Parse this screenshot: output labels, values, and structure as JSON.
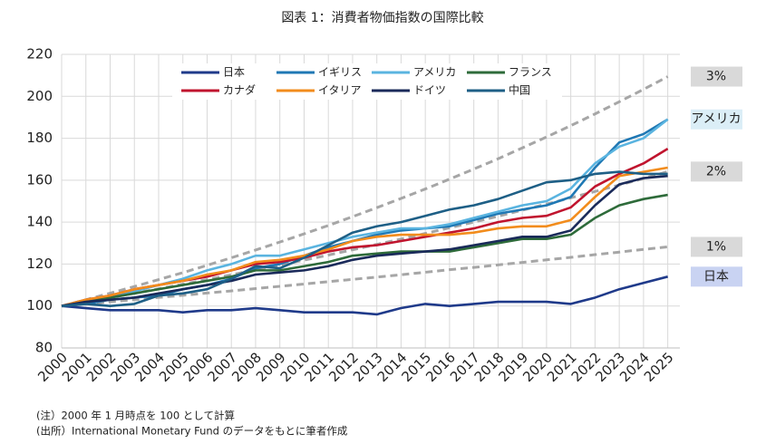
{
  "chart_data": {
    "type": "line",
    "title": "図表 1：消費者物価指数の国際比較",
    "x": [
      2000,
      2001,
      2002,
      2003,
      2004,
      2005,
      2006,
      2007,
      2008,
      2009,
      2010,
      2011,
      2012,
      2013,
      2014,
      2015,
      2016,
      2017,
      2018,
      2019,
      2020,
      2021,
      2022,
      2023,
      2024,
      2025
    ],
    "xlim": [
      2000,
      2025.5
    ],
    "xticks": [
      2000,
      2001,
      2002,
      2003,
      2004,
      2005,
      2006,
      2007,
      2008,
      2009,
      2010,
      2011,
      2012,
      2013,
      2014,
      2015,
      2016,
      2017,
      2018,
      2019,
      2020,
      2021,
      2022,
      2023,
      2024,
      2025
    ],
    "ylim": [
      80,
      220
    ],
    "yticks": [
      80,
      100,
      120,
      140,
      160,
      180,
      200,
      220
    ],
    "grid": true,
    "legend": "top",
    "series": [
      {
        "name": "日本",
        "color": "#1f3a8a",
        "end_label": "日本",
        "label_color": "#c9d3f2",
        "values": [
          100,
          99,
          98,
          98,
          98,
          97,
          98,
          98,
          99,
          98,
          97,
          97,
          97,
          96,
          99,
          101,
          100,
          101,
          102,
          102,
          102,
          101,
          104,
          108,
          111,
          114
        ]
      },
      {
        "name": "イギリス",
        "color": "#1f78b4",
        "values": [
          100,
          101,
          103,
          104,
          105,
          108,
          110,
          113,
          118,
          120,
          124,
          128,
          131,
          134,
          136,
          137,
          138,
          141,
          144,
          146,
          148,
          152,
          166,
          178,
          182,
          189
        ]
      },
      {
        "name": "アメリカ",
        "color": "#5ab4e0",
        "end_label": "アメリカ",
        "label_color": "#dbeef7",
        "values": [
          100,
          103,
          104,
          107,
          110,
          113,
          117,
          120,
          124,
          124,
          127,
          130,
          133,
          135,
          137,
          137,
          139,
          142,
          145,
          148,
          150,
          156,
          168,
          176,
          180,
          189
        ]
      },
      {
        "name": "フランス",
        "color": "#2e6b3a",
        "values": [
          100,
          102,
          104,
          106,
          108,
          110,
          112,
          114,
          117,
          117,
          119,
          121,
          124,
          125,
          126,
          126,
          126,
          128,
          130,
          132,
          132,
          134,
          142,
          148,
          151,
          153
        ]
      },
      {
        "name": "カナダ",
        "color": "#c0142e",
        "values": [
          100,
          103,
          105,
          108,
          110,
          112,
          114,
          117,
          120,
          121,
          123,
          126,
          128,
          129,
          131,
          133,
          135,
          137,
          140,
          142,
          143,
          147,
          157,
          163,
          168,
          175
        ]
      },
      {
        "name": "イタリア",
        "color": "#f28c1c",
        "values": [
          100,
          103,
          105,
          108,
          110,
          112,
          115,
          117,
          121,
          122,
          124,
          127,
          131,
          133,
          134,
          134,
          134,
          135,
          137,
          138,
          138,
          141,
          152,
          162,
          164,
          166
        ]
      },
      {
        "name": "ドイツ",
        "color": "#1a2a5a",
        "values": [
          100,
          102,
          103,
          104,
          106,
          108,
          110,
          112,
          115,
          116,
          117,
          119,
          122,
          124,
          125,
          126,
          127,
          129,
          131,
          133,
          133,
          136,
          148,
          158,
          161,
          162
        ]
      },
      {
        "name": "中国",
        "color": "#1e5f86",
        "values": [
          100,
          101,
          100,
          101,
          105,
          106,
          108,
          113,
          119,
          118,
          123,
          129,
          135,
          138,
          140,
          143,
          146,
          148,
          151,
          155,
          159,
          160,
          163,
          164,
          163,
          163
        ]
      }
    ],
    "reference_lines": [
      {
        "label": "3%",
        "color": "#a6a6a6",
        "values": [
          100,
          103,
          106.1,
          109.3,
          112.6,
          115.9,
          119.4,
          123,
          126.7,
          130.5,
          134.4,
          138.4,
          142.6,
          146.9,
          151.3,
          155.8,
          160.5,
          165.3,
          170.2,
          175.4,
          180.6,
          186,
          191.6,
          197.4,
          203.3,
          209.4
        ]
      },
      {
        "label": "2%",
        "color": "#a6a6a6",
        "values": [
          100,
          102,
          104,
          106.1,
          108.2,
          110.4,
          112.6,
          114.9,
          117.2,
          119.5,
          121.9,
          124.3,
          126.8,
          129.4,
          131.9,
          134.6,
          137.3,
          140,
          142.8,
          145.7,
          148.6,
          151.6,
          154.6,
          157.7,
          160.8,
          164.1
        ]
      },
      {
        "label": "1%",
        "color": "#a6a6a6",
        "values": [
          100,
          101,
          102,
          103,
          104.1,
          105.1,
          106.2,
          107.2,
          108.3,
          109.4,
          110.5,
          111.6,
          112.7,
          113.8,
          114.9,
          116.1,
          117.3,
          118.4,
          119.6,
          120.8,
          122,
          123.2,
          124.5,
          125.7,
          127,
          128.2
        ]
      }
    ],
    "label_box_color": "#d9d9d9",
    "notes": [
      "(注）2000 年 1 月時点を 100 として計算",
      "(出所）International Monetary Fund のデータをもとに筆者作成"
    ]
  }
}
